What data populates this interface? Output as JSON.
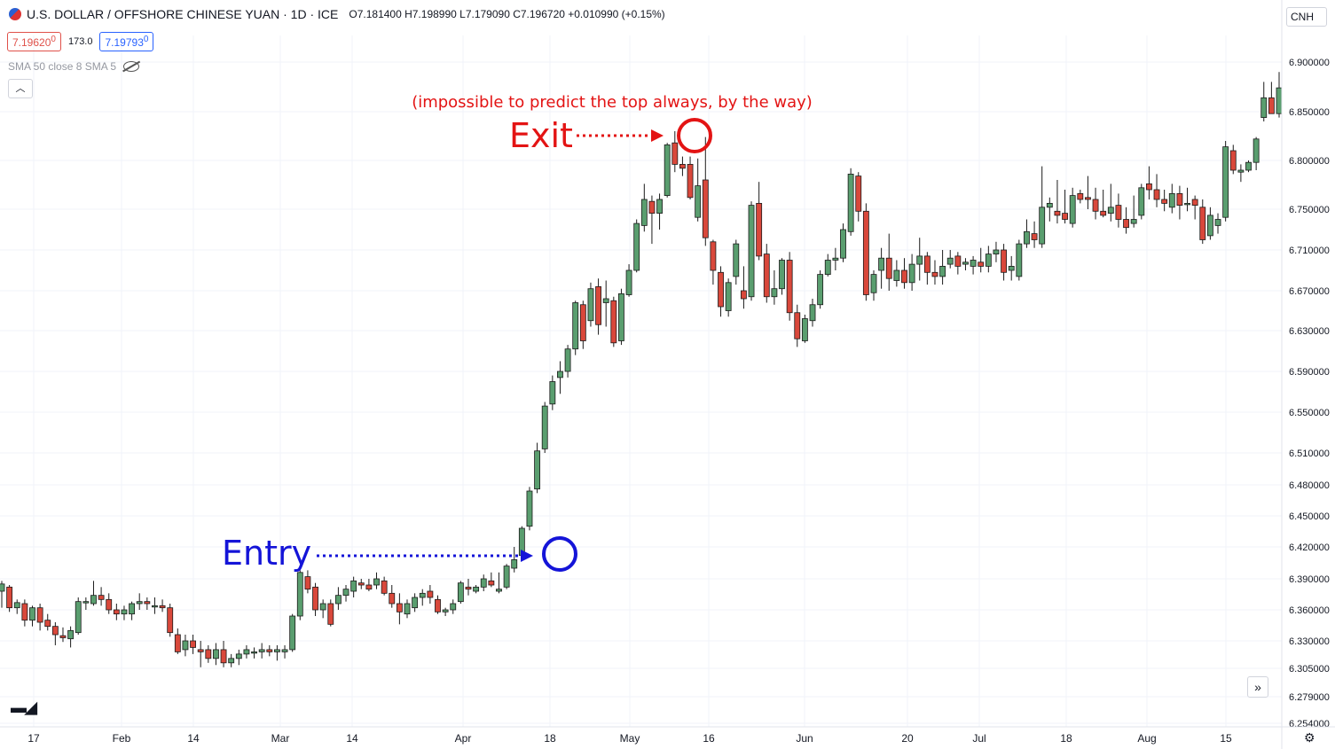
{
  "header": {
    "symbol": "U.S. DOLLAR / OFFSHORE CHINESE YUAN · 1D · ICE",
    "ohlc": "O7.181400 H7.198990 L7.179090 C7.196720 +0.010990 (+0.15%)",
    "sell_price": "7.19620",
    "sell_sup": "0",
    "spread": "173.0",
    "buy_price": "7.19793",
    "buy_sup": "0",
    "indicators": "SMA 50 close 8 SMA 5",
    "currency": "CNH",
    "collapse_icon": "chevron-up-icon",
    "logo": "TV"
  },
  "annotations": {
    "note": "(impossible to predict the top always, by the way)",
    "exit_label": "Exit",
    "entry_label": "Entry",
    "exit_color": "#e31414",
    "entry_color": "#1414d8"
  },
  "chart_data": {
    "type": "candlestick",
    "y_ticks": [
      "6.900000",
      "6.850000",
      "6.800000",
      "6.750000",
      "6.710000",
      "6.670000",
      "6.630000",
      "6.590000",
      "6.550000",
      "6.510000",
      "6.480000",
      "6.450000",
      "6.420000",
      "6.390000",
      "6.360000",
      "6.330000",
      "6.305000",
      "6.279000",
      "6.254000"
    ],
    "x_ticks": [
      "17",
      "Feb",
      "14",
      "Mar",
      "14",
      "Apr",
      "18",
      "May",
      "16",
      "Jun",
      "20",
      "Jul",
      "18",
      "Aug",
      "15"
    ],
    "up_color": "#5a9e6f",
    "down_color": "#d9483b",
    "candles": [
      [
        6.378,
        6.388,
        6.362,
        6.385
      ],
      [
        6.382,
        6.384,
        6.358,
        6.362
      ],
      [
        6.362,
        6.37,
        6.356,
        6.367
      ],
      [
        6.366,
        6.37,
        6.344,
        6.35
      ],
      [
        6.35,
        6.364,
        6.344,
        6.362
      ],
      [
        6.362,
        6.366,
        6.34,
        6.348
      ],
      [
        6.35,
        6.356,
        6.34,
        6.344
      ],
      [
        6.344,
        6.348,
        6.326,
        6.336
      ],
      [
        6.335,
        6.343,
        6.329,
        6.333
      ],
      [
        6.332,
        6.344,
        6.324,
        6.34
      ],
      [
        6.338,
        6.372,
        6.336,
        6.368
      ],
      [
        6.367,
        6.372,
        6.36,
        6.368
      ],
      [
        6.366,
        6.388,
        6.364,
        6.374
      ],
      [
        6.374,
        6.382,
        6.364,
        6.37
      ],
      [
        6.37,
        6.376,
        6.356,
        6.36
      ],
      [
        6.36,
        6.366,
        6.35,
        6.356
      ],
      [
        6.356,
        6.364,
        6.35,
        6.36
      ],
      [
        6.356,
        6.368,
        6.35,
        6.366
      ],
      [
        6.366,
        6.376,
        6.36,
        6.368
      ],
      [
        6.368,
        6.372,
        6.36,
        6.366
      ],
      [
        6.364,
        6.372,
        6.356,
        6.364
      ],
      [
        6.364,
        6.37,
        6.358,
        6.362
      ],
      [
        6.362,
        6.366,
        6.334,
        6.338
      ],
      [
        6.336,
        6.342,
        6.318,
        6.32
      ],
      [
        6.322,
        6.336,
        6.316,
        6.33
      ],
      [
        6.33,
        6.336,
        6.318,
        6.324
      ],
      [
        6.322,
        6.33,
        6.306,
        6.32
      ],
      [
        6.322,
        6.326,
        6.31,
        6.314
      ],
      [
        6.314,
        6.328,
        6.308,
        6.322
      ],
      [
        6.322,
        6.33,
        6.306,
        6.31
      ],
      [
        6.31,
        6.318,
        6.306,
        6.314
      ],
      [
        6.314,
        6.322,
        6.308,
        6.318
      ],
      [
        6.318,
        6.326,
        6.314,
        6.322
      ],
      [
        6.32,
        6.324,
        6.314,
        6.32
      ],
      [
        6.32,
        6.328,
        6.314,
        6.322
      ],
      [
        6.322,
        6.326,
        6.316,
        6.32
      ],
      [
        6.32,
        6.326,
        6.312,
        6.322
      ],
      [
        6.32,
        6.326,
        6.314,
        6.322
      ],
      [
        6.322,
        6.356,
        6.32,
        6.354
      ],
      [
        6.354,
        6.398,
        6.35,
        6.396
      ],
      [
        6.392,
        6.398,
        6.376,
        6.38
      ],
      [
        6.382,
        6.386,
        6.354,
        6.36
      ],
      [
        6.36,
        6.37,
        6.352,
        6.366
      ],
      [
        6.366,
        6.37,
        6.344,
        6.346
      ],
      [
        6.366,
        6.382,
        6.36,
        6.374
      ],
      [
        6.374,
        6.384,
        6.368,
        6.38
      ],
      [
        6.378,
        6.392,
        6.372,
        6.388
      ],
      [
        6.386,
        6.39,
        6.38,
        6.384
      ],
      [
        6.384,
        6.39,
        6.378,
        6.38
      ],
      [
        6.384,
        6.396,
        6.38,
        6.39
      ],
      [
        6.388,
        6.392,
        6.374,
        6.376
      ],
      [
        6.376,
        6.384,
        6.362,
        6.366
      ],
      [
        6.366,
        6.376,
        6.346,
        6.358
      ],
      [
        6.356,
        6.37,
        6.352,
        6.366
      ],
      [
        6.362,
        6.376,
        6.358,
        6.372
      ],
      [
        6.372,
        6.38,
        6.364,
        6.376
      ],
      [
        6.378,
        6.384,
        6.366,
        6.372
      ],
      [
        6.37,
        6.374,
        6.356,
        6.358
      ],
      [
        6.358,
        6.362,
        6.354,
        6.36
      ],
      [
        6.36,
        6.37,
        6.356,
        6.366
      ],
      [
        6.368,
        6.388,
        6.366,
        6.386
      ],
      [
        6.382,
        6.39,
        6.374,
        6.38
      ],
      [
        6.378,
        6.384,
        6.376,
        6.382
      ],
      [
        6.382,
        6.394,
        6.378,
        6.39
      ],
      [
        6.388,
        6.396,
        6.382,
        6.384
      ],
      [
        6.378,
        6.396,
        6.376,
        6.38
      ],
      [
        6.382,
        6.404,
        6.38,
        6.402
      ],
      [
        6.4,
        6.42,
        6.396,
        6.408
      ],
      [
        6.412,
        6.44,
        6.41,
        6.438
      ],
      [
        6.44,
        6.478,
        6.436,
        6.474
      ],
      [
        6.476,
        6.52,
        6.472,
        6.512
      ],
      [
        6.514,
        6.56,
        6.51,
        6.556
      ],
      [
        6.558,
        6.586,
        6.552,
        6.58
      ],
      [
        6.584,
        6.6,
        6.568,
        6.59
      ],
      [
        6.59,
        6.616,
        6.584,
        6.612
      ],
      [
        6.612,
        6.66,
        6.606,
        6.658
      ],
      [
        6.656,
        6.66,
        6.612,
        6.62
      ],
      [
        6.64,
        6.678,
        6.634,
        6.672
      ],
      [
        6.674,
        6.682,
        6.626,
        6.636
      ],
      [
        6.658,
        6.68,
        6.634,
        6.662
      ],
      [
        6.66,
        6.664,
        6.614,
        6.618
      ],
      [
        6.62,
        6.672,
        6.616,
        6.667
      ],
      [
        6.666,
        6.696,
        6.664,
        6.69
      ],
      [
        6.69,
        6.74,
        6.688,
        6.736
      ],
      [
        6.734,
        6.776,
        6.728,
        6.76
      ],
      [
        6.758,
        6.764,
        6.716,
        6.746
      ],
      [
        6.746,
        6.766,
        6.73,
        6.76
      ],
      [
        6.764,
        6.818,
        6.762,
        6.816
      ],
      [
        6.818,
        6.83,
        6.788,
        6.796
      ],
      [
        6.796,
        6.804,
        6.784,
        6.792
      ],
      [
        6.796,
        6.804,
        6.76,
        6.762
      ],
      [
        6.742,
        6.802,
        6.738,
        6.774
      ],
      [
        6.78,
        6.824,
        6.714,
        6.722
      ],
      [
        6.718,
        6.72,
        6.676,
        6.69
      ],
      [
        6.688,
        6.694,
        6.644,
        6.654
      ],
      [
        6.65,
        6.682,
        6.644,
        6.678
      ],
      [
        6.684,
        6.72,
        6.676,
        6.716
      ],
      [
        6.67,
        6.694,
        6.652,
        6.662
      ],
      [
        6.664,
        6.758,
        6.66,
        6.754
      ],
      [
        6.756,
        6.778,
        6.7,
        6.704
      ],
      [
        6.706,
        6.716,
        6.658,
        6.664
      ],
      [
        6.664,
        6.69,
        6.656,
        6.672
      ],
      [
        6.672,
        6.702,
        6.666,
        6.7
      ],
      [
        6.7,
        6.708,
        6.64,
        6.648
      ],
      [
        6.648,
        6.656,
        6.614,
        6.622
      ],
      [
        6.62,
        6.646,
        6.618,
        6.642
      ],
      [
        6.64,
        6.662,
        6.634,
        6.656
      ],
      [
        6.656,
        6.69,
        6.652,
        6.686
      ],
      [
        6.686,
        6.706,
        6.684,
        6.7
      ],
      [
        6.7,
        6.712,
        6.69,
        6.702
      ],
      [
        6.702,
        6.736,
        6.698,
        6.73
      ],
      [
        6.728,
        6.792,
        6.724,
        6.786
      ],
      [
        6.784,
        6.788,
        6.738,
        6.748
      ],
      [
        6.748,
        6.756,
        6.66,
        6.666
      ],
      [
        6.668,
        6.69,
        6.66,
        6.686
      ],
      [
        6.69,
        6.712,
        6.672,
        6.702
      ],
      [
        6.702,
        6.726,
        6.67,
        6.682
      ],
      [
        6.68,
        6.7,
        6.674,
        6.69
      ],
      [
        6.69,
        6.702,
        6.672,
        6.678
      ],
      [
        6.678,
        6.706,
        6.67,
        6.696
      ],
      [
        6.696,
        6.722,
        6.68,
        6.704
      ],
      [
        6.704,
        6.708,
        6.676,
        6.688
      ],
      [
        6.688,
        6.7,
        6.676,
        6.684
      ],
      [
        6.684,
        6.71,
        6.676,
        6.694
      ],
      [
        6.696,
        6.71,
        6.692,
        6.702
      ],
      [
        6.704,
        6.708,
        6.686,
        6.694
      ],
      [
        6.696,
        6.702,
        6.69,
        6.698
      ],
      [
        6.694,
        6.704,
        6.686,
        6.7
      ],
      [
        6.698,
        6.712,
        6.688,
        6.694
      ],
      [
        6.694,
        6.714,
        6.688,
        6.706
      ],
      [
        6.706,
        6.718,
        6.698,
        6.71
      ],
      [
        6.71,
        6.716,
        6.68,
        6.688
      ],
      [
        6.69,
        6.704,
        6.68,
        6.694
      ],
      [
        6.684,
        6.72,
        6.68,
        6.716
      ],
      [
        6.716,
        6.74,
        6.712,
        6.728
      ],
      [
        6.726,
        6.738,
        6.712,
        6.72
      ],
      [
        6.716,
        6.794,
        6.712,
        6.752
      ],
      [
        6.752,
        6.762,
        6.738,
        6.756
      ],
      [
        6.748,
        6.78,
        6.736,
        6.744
      ],
      [
        6.746,
        6.77,
        6.736,
        6.74
      ],
      [
        6.736,
        6.772,
        6.732,
        6.764
      ],
      [
        6.766,
        6.77,
        6.756,
        6.76
      ],
      [
        6.762,
        6.784,
        6.75,
        6.76
      ],
      [
        6.76,
        6.772,
        6.74,
        6.748
      ],
      [
        6.748,
        6.77,
        6.742,
        6.744
      ],
      [
        6.746,
        6.776,
        6.738,
        6.752
      ],
      [
        6.754,
        6.766,
        6.732,
        6.74
      ],
      [
        6.74,
        6.752,
        6.726,
        6.732
      ],
      [
        6.736,
        6.764,
        6.732,
        6.74
      ],
      [
        6.744,
        6.776,
        6.74,
        6.772
      ],
      [
        6.776,
        6.794,
        6.76,
        6.77
      ],
      [
        6.77,
        6.786,
        6.752,
        6.76
      ],
      [
        6.76,
        6.77,
        6.748,
        6.756
      ],
      [
        6.752,
        6.776,
        6.746,
        6.766
      ],
      [
        6.766,
        6.774,
        6.74,
        6.754
      ],
      [
        6.756,
        6.772,
        6.748,
        6.756
      ],
      [
        6.76,
        6.764,
        6.74,
        6.754
      ],
      [
        6.752,
        6.76,
        6.716,
        6.72
      ],
      [
        6.724,
        6.752,
        6.72,
        6.744
      ],
      [
        6.734,
        6.746,
        6.726,
        6.74
      ],
      [
        6.742,
        6.82,
        6.738,
        6.814
      ],
      [
        6.81,
        6.816,
        6.786,
        6.79
      ],
      [
        6.788,
        6.796,
        6.778,
        6.79
      ],
      [
        6.79,
        6.8,
        6.788,
        6.798
      ],
      [
        6.798,
        6.824,
        6.79,
        6.822
      ],
      [
        6.844,
        6.88,
        6.84,
        6.864
      ],
      [
        6.864,
        6.88,
        6.848,
        6.848
      ],
      [
        6.848,
        6.89,
        6.844,
        6.874
      ]
    ]
  }
}
